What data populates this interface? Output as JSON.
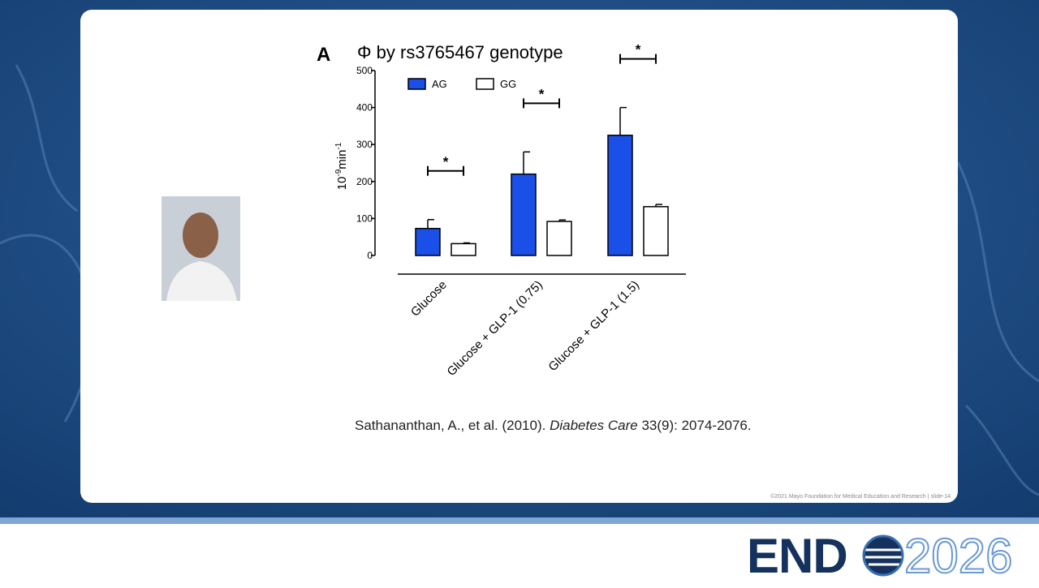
{
  "panel_label": "A",
  "chart_data": {
    "type": "bar",
    "title": "Φ by rs3765467 genotype",
    "y_label": {
      "base": "10",
      "exp": "-9",
      "unit": "min",
      "unit_exp": "-1"
    },
    "categories": [
      "Glucose",
      "Glucose + GLP-1 (0.75)",
      "Glucose + GLP-1 (1.5)"
    ],
    "series": [
      {
        "name": "AG",
        "color": "#1a4fe8",
        "values": [
          73,
          220,
          325
        ],
        "errors": [
          24,
          60,
          75
        ]
      },
      {
        "name": "GG",
        "color": "#ffffff",
        "values": [
          32,
          92,
          132
        ],
        "errors": [
          2,
          4,
          6
        ]
      }
    ],
    "significance": [
      "*",
      "*",
      "*"
    ],
    "ylim": [
      0,
      500
    ],
    "yticks": [
      0,
      100,
      200,
      300,
      400,
      500
    ],
    "grid": false,
    "legend": "top-left"
  },
  "citation": {
    "authors": "Sathananthan, A., et al. (2010). ",
    "journal": "Diabetes Care",
    "rest": " 33(9): 2074-2076."
  },
  "footer": "©2021 Mayo Foundation for Medical Education and Research  |  slide-14",
  "logo": {
    "left": "END",
    "right": "2026"
  }
}
